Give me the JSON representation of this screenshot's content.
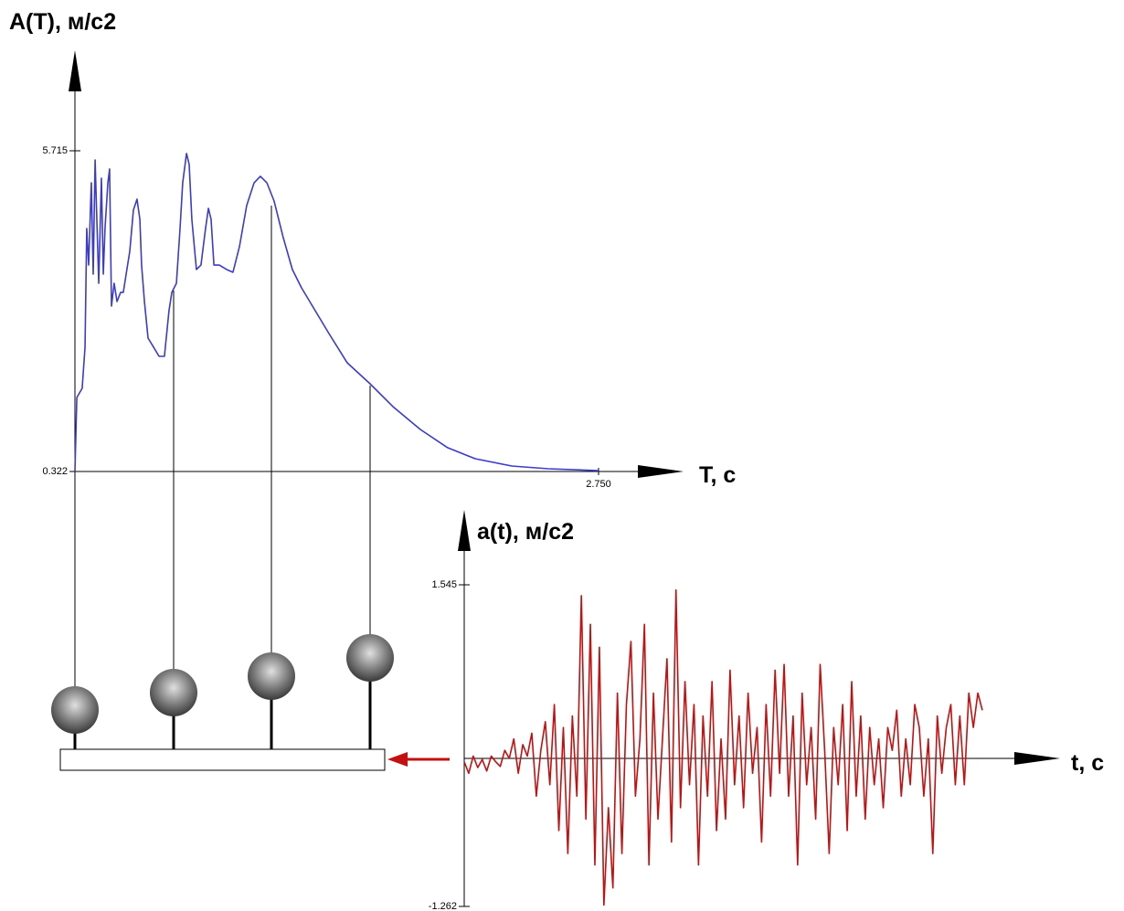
{
  "chart_data": [
    {
      "type": "line",
      "ylabel": "A(T), м/с2",
      "xlabel": "T, c",
      "xlim": [
        0,
        2.75
      ],
      "ylim": [
        0.322,
        5.715
      ],
      "xticks": [
        {
          "value": 2.75,
          "label": "2.750"
        }
      ],
      "yticks": [
        {
          "value": 0.322,
          "label": "0.322"
        },
        {
          "value": 5.715,
          "label": "5.715"
        }
      ],
      "series": [
        {
          "color": "#3b3bcc",
          "x": [
            0,
            0.01,
            0.038,
            0.053,
            0.062,
            0.072,
            0.086,
            0.096,
            0.106,
            0.115,
            0.125,
            0.139,
            0.149,
            0.158,
            0.173,
            0.182,
            0.192,
            0.206,
            0.221,
            0.24,
            0.254,
            0.269,
            0.288,
            0.307,
            0.326,
            0.341,
            0.35,
            0.365,
            0.384,
            0.413,
            0.442,
            0.47,
            0.494,
            0.509,
            0.533,
            0.552,
            0.566,
            0.586,
            0.6,
            0.614,
            0.638,
            0.662,
            0.686,
            0.701,
            0.715,
            0.73,
            0.758,
            0.797,
            0.83,
            0.864,
            0.902,
            0.941,
            0.974,
            1.008,
            1.046,
            1.094,
            1.142,
            1.19,
            1.262,
            1.334,
            1.43,
            1.55,
            1.67,
            1.814,
            1.958,
            2.102,
            2.294,
            2.486,
            2.75
          ],
          "values": [
            0.322,
            1.567,
            1.72,
            2.412,
            4.409,
            3.794,
            5.177,
            3.641,
            5.561,
            4.563,
            3.487,
            5.254,
            3.641,
            4.409,
            5.177,
            5.408,
            3.103,
            3.487,
            3.18,
            3.334,
            3.334,
            3.641,
            4.025,
            4.716,
            4.901,
            4.563,
            3.794,
            3.18,
            2.565,
            2.412,
            2.258,
            2.258,
            3.026,
            3.334,
            3.487,
            4.409,
            5.177,
            5.669,
            5.485,
            4.563,
            3.718,
            3.794,
            4.409,
            4.747,
            4.563,
            3.794,
            3.794,
            3.718,
            3.672,
            4.102,
            4.793,
            5.177,
            5.285,
            5.177,
            4.87,
            4.255,
            3.718,
            3.41,
            3.026,
            2.642,
            2.15,
            1.797,
            1.413,
            1.029,
            0.721,
            0.537,
            0.414,
            0.368,
            0.337
          ]
        }
      ]
    },
    {
      "type": "line",
      "ylabel": "a(t), м/с2",
      "xlabel": "t, c",
      "ylim": [
        -1.262,
        1.545
      ],
      "yticks": [
        {
          "value": 1.545,
          "label": "1.545"
        },
        {
          "value": -1.262,
          "label": "-1.262"
        }
      ],
      "series": [
        {
          "color": "#c41010",
          "values": [
            0.0,
            -0.1,
            0.05,
            -0.05,
            0.02,
            -0.08,
            0.05,
            0.0,
            -0.04,
            0.1,
            0.03,
            0.2,
            -0.1,
            0.15,
            0.05,
            0.25,
            -0.3,
            0.1,
            0.35,
            -0.2,
            0.5,
            -0.6,
            0.3,
            -0.8,
            0.4,
            -0.3,
            1.45,
            -0.5,
            1.2,
            -0.9,
            1.0,
            -1.25,
            -0.4,
            -1.1,
            0.6,
            -0.8,
            0.5,
            1.05,
            -0.3,
            0.2,
            1.2,
            -0.9,
            0.6,
            -0.5,
            0.2,
            0.9,
            -0.7,
            1.5,
            -0.4,
            0.7,
            -0.2,
            0.5,
            -0.9,
            0.4,
            -0.3,
            0.7,
            -0.6,
            0.2,
            -0.5,
            0.8,
            -0.2,
            0.4,
            -0.4,
            0.6,
            -0.1,
            0.3,
            -0.7,
            0.5,
            -0.3,
            0.8,
            -0.1,
            0.85,
            -0.3,
            0.4,
            -0.9,
            0.6,
            -0.2,
            0.3,
            -0.5,
            0.85,
            0.1,
            -0.8,
            0.3,
            -0.2,
            0.5,
            -0.6,
            0.7,
            -0.3,
            0.4,
            -0.5,
            0.3,
            -0.2,
            0.2,
            -0.4,
            0.3,
            0.1,
            0.45,
            -0.3,
            0.2,
            -0.2,
            0.5,
            0.3,
            -0.3,
            0.2,
            -0.8,
            0.4,
            -0.1,
            0.3,
            0.5,
            -0.2,
            0.4,
            -0.2,
            0.6,
            0.3,
            0.6,
            0.45
          ]
        }
      ]
    }
  ]
}
